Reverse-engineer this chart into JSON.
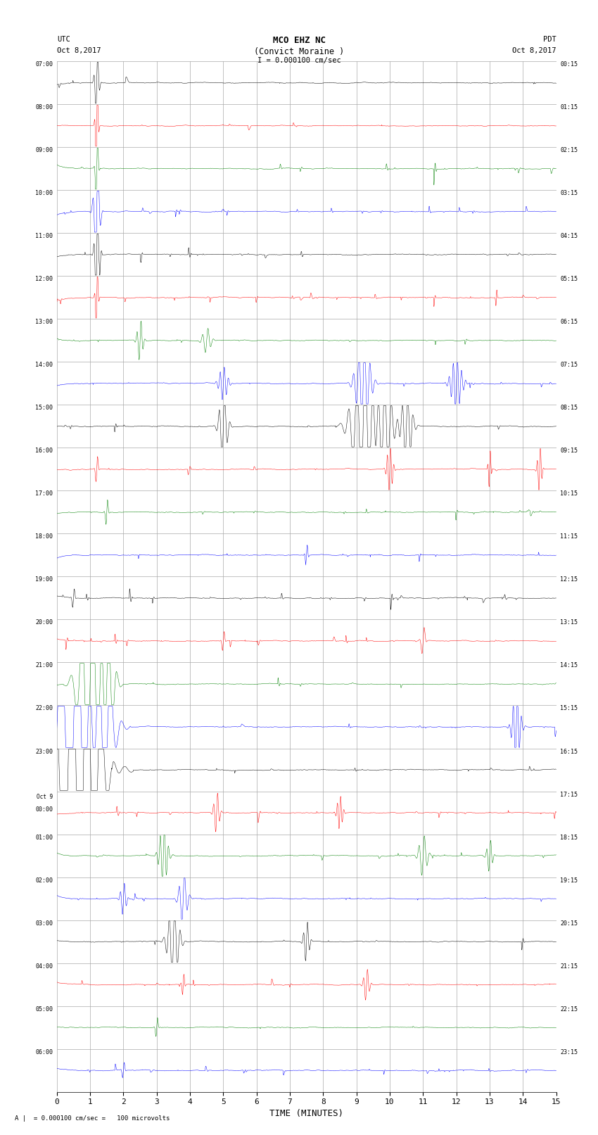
{
  "title_line1": "MCO EHZ NC",
  "title_line2": "(Convict Moraine )",
  "scale_text": "I = 0.000100 cm/sec",
  "footer_text": "A |  = 0.000100 cm/sec =   100 microvolts",
  "utc_label": "UTC",
  "utc_date": "Oct 8,2017",
  "pdt_label": "PDT",
  "pdt_date": "Oct 8,2017",
  "xlabel": "TIME (MINUTES)",
  "left_labels": [
    "07:00",
    "08:00",
    "09:00",
    "10:00",
    "11:00",
    "12:00",
    "13:00",
    "14:00",
    "15:00",
    "16:00",
    "17:00",
    "18:00",
    "19:00",
    "20:00",
    "21:00",
    "22:00",
    "23:00",
    "Oct 9\n00:00",
    "01:00",
    "02:00",
    "03:00",
    "04:00",
    "05:00",
    "06:00"
  ],
  "right_labels": [
    "00:15",
    "01:15",
    "02:15",
    "03:15",
    "04:15",
    "05:15",
    "06:15",
    "07:15",
    "08:15",
    "09:15",
    "10:15",
    "11:15",
    "12:15",
    "13:15",
    "14:15",
    "15:15",
    "16:15",
    "17:15",
    "18:15",
    "19:15",
    "20:15",
    "21:15",
    "22:15",
    "23:15"
  ],
  "n_rows": 24,
  "colors_cycle": [
    "black",
    "red",
    "green",
    "blue"
  ],
  "bg_color": "white",
  "grid_color": "#aaaaaa",
  "xticks": [
    0,
    1,
    2,
    3,
    4,
    5,
    6,
    7,
    8,
    9,
    10,
    11,
    12,
    13,
    14,
    15
  ],
  "figsize": [
    8.5,
    16.13
  ],
  "dpi": 100,
  "noise_amp": 0.06,
  "trace_lw": 0.35
}
